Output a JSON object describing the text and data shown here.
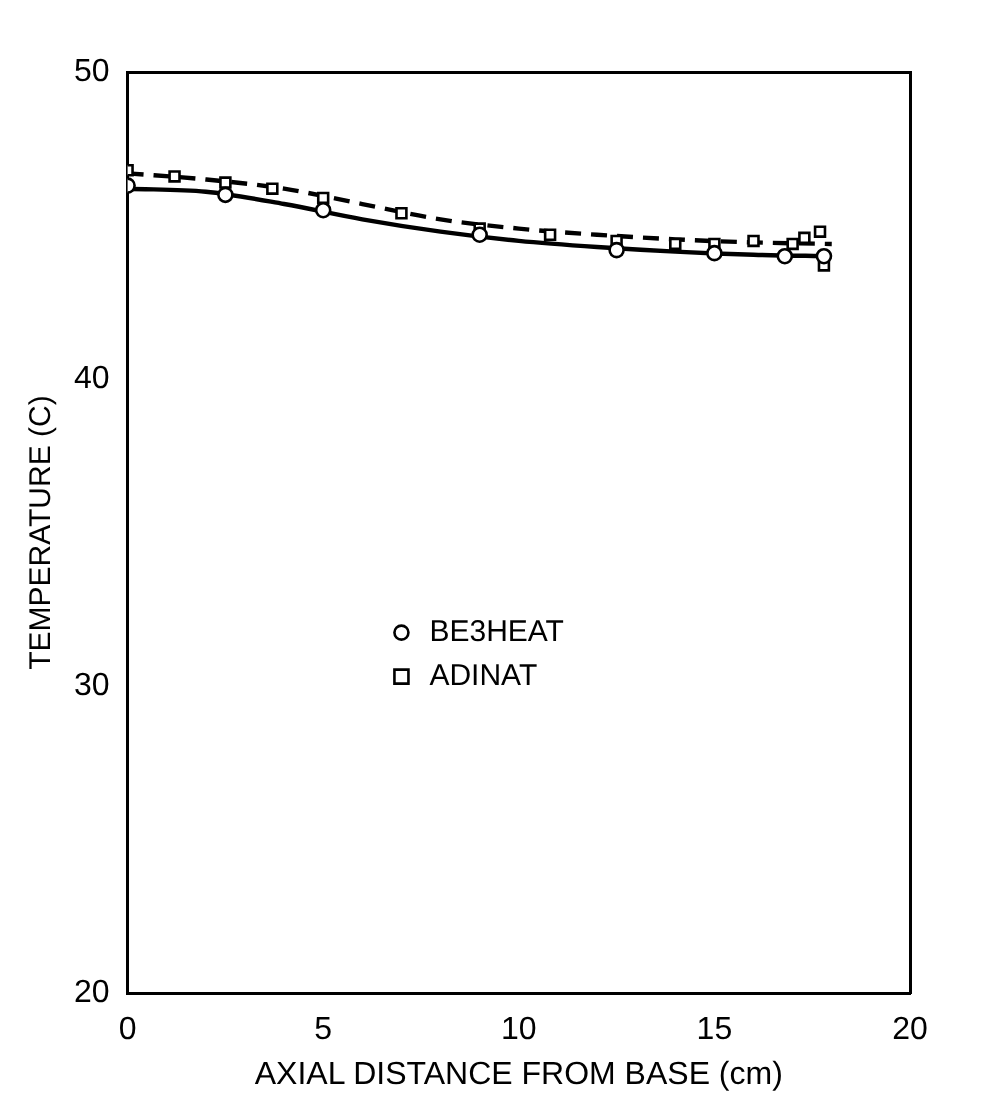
{
  "chart_data": {
    "type": "scatter",
    "xlabel": "AXIAL DISTANCE FROM BASE (cm)",
    "ylabel": "TEMPERATURE (C)",
    "xlim": [
      0,
      20
    ],
    "xticks": [
      0,
      5,
      10,
      15,
      20
    ],
    "ylim": [
      20,
      50
    ],
    "yticks": [
      20,
      30,
      40,
      50
    ],
    "grid": false,
    "legend": "center left",
    "series": [
      {
        "type": "scatter",
        "name": "BE3HEAT",
        "color": "#000000",
        "marker": "circle",
        "x": [
          0,
          2.5,
          5,
          9,
          12.5,
          15,
          16.8,
          17.8
        ],
        "values": [
          46.3,
          46.0,
          45.5,
          44.7,
          44.2,
          44.1,
          44.0,
          44.0
        ]
      },
      {
        "type": "scatter",
        "name": "ADINAT",
        "color": "#000000",
        "marker": "square",
        "x": [
          0,
          1.2,
          2.5,
          3.7,
          5,
          7,
          9,
          10.8,
          12.5,
          14,
          15,
          16,
          17,
          17.3,
          17.7,
          17.8
        ],
        "values": [
          46.8,
          46.6,
          46.4,
          46.2,
          45.9,
          45.4,
          44.9,
          44.7,
          44.5,
          44.4,
          44.4,
          44.5,
          44.4,
          44.6,
          44.8,
          43.7
        ]
      },
      {
        "type": "line",
        "color": "#000000",
        "marker": "none",
        "line_style": "solid",
        "x": [
          0,
          2,
          4,
          6,
          8,
          10,
          12,
          14,
          16,
          18
        ],
        "values": [
          46.2,
          46.1,
          45.7,
          45.2,
          44.8,
          44.5,
          44.3,
          44.15,
          44.05,
          44.0
        ]
      },
      {
        "type": "line",
        "color": "#000000",
        "marker": "none",
        "line_style": "dashed",
        "x": [
          0,
          2,
          4,
          6,
          8,
          10,
          12,
          14,
          16,
          18
        ],
        "values": [
          46.7,
          46.5,
          46.2,
          45.7,
          45.2,
          44.9,
          44.7,
          44.55,
          44.45,
          44.4
        ]
      }
    ]
  }
}
